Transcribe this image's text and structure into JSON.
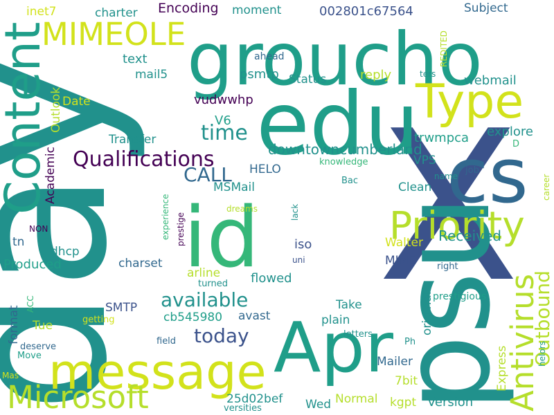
{
  "palette": {
    "background": "#ffffff",
    "dark_purple": "#440154",
    "indigo": "#3b528b",
    "blue_teal": "#31688e",
    "teal": "#21918c",
    "green_teal": "#1f9e89",
    "green": "#35b779",
    "light_green": "#6ece58",
    "lime": "#b5de2b",
    "yellow": "#d2e21b"
  },
  "words": [
    {
      "text": "X"
    },
    {
      "text": "day"
    },
    {
      "text": "groucho"
    },
    {
      "text": "edu"
    },
    {
      "text": "cs"
    },
    {
      "text": "psu"
    },
    {
      "text": "id"
    },
    {
      "text": "Apr"
    },
    {
      "text": "Content"
    },
    {
      "text": "message"
    },
    {
      "text": "Type"
    },
    {
      "text": "Priority"
    },
    {
      "text": "Microsoft"
    },
    {
      "text": "MIMEOLE"
    },
    {
      "text": "Antivirus"
    },
    {
      "text": "Qualifications"
    },
    {
      "text": "available"
    },
    {
      "text": "today"
    },
    {
      "text": "time"
    },
    {
      "text": "CALL"
    },
    {
      "text": "Outbound"
    },
    {
      "text": "Received"
    },
    {
      "text": "downtowncumberland"
    },
    {
      "text": "002801c67564"
    },
    {
      "text": "Encoding"
    },
    {
      "text": "charter"
    },
    {
      "text": "moment"
    },
    {
      "text": "Subject"
    },
    {
      "text": "inet7"
    },
    {
      "text": "text"
    },
    {
      "text": "mail5"
    },
    {
      "text": "psmtp"
    },
    {
      "text": "ahead"
    },
    {
      "text": "Status"
    },
    {
      "text": "reply"
    },
    {
      "text": "webmail"
    },
    {
      "text": "REDITED"
    },
    {
      "text": "ters"
    },
    {
      "text": "Outlook"
    },
    {
      "text": "Date"
    },
    {
      "text": "vudwwhp"
    },
    {
      "text": "V6"
    },
    {
      "text": "explore"
    },
    {
      "text": "Transfer"
    },
    {
      "text": "trwmpca"
    },
    {
      "text": "D"
    },
    {
      "text": "Academic"
    },
    {
      "text": "HELO"
    },
    {
      "text": "VPS"
    },
    {
      "text": "knowledge"
    },
    {
      "text": "job"
    },
    {
      "text": "career"
    },
    {
      "text": "name"
    },
    {
      "text": "MSMail"
    },
    {
      "text": "Bac"
    },
    {
      "text": "Clean"
    },
    {
      "text": "experience"
    },
    {
      "text": "prestige"
    },
    {
      "text": "dreams"
    },
    {
      "text": "lack"
    },
    {
      "text": "NON"
    },
    {
      "text": "tn"
    },
    {
      "text": "dhcp"
    },
    {
      "text": "iso"
    },
    {
      "text": "Walter"
    },
    {
      "text": "Produced"
    },
    {
      "text": "charset"
    },
    {
      "text": "uni"
    },
    {
      "text": "MIME"
    },
    {
      "text": "right"
    },
    {
      "text": "arline"
    },
    {
      "text": "flowed"
    },
    {
      "text": "turned"
    },
    {
      "text": "original"
    },
    {
      "text": "prestigious"
    },
    {
      "text": "format"
    },
    {
      "text": "ACC"
    },
    {
      "text": "SMTP"
    },
    {
      "text": "cb545980"
    },
    {
      "text": "avast"
    },
    {
      "text": "Take"
    },
    {
      "text": "plain"
    },
    {
      "text": "Tue"
    },
    {
      "text": "getting"
    },
    {
      "text": "letters"
    },
    {
      "text": "deserve"
    },
    {
      "text": "field"
    },
    {
      "text": "Ph"
    },
    {
      "text": "Express"
    },
    {
      "text": "Move"
    },
    {
      "text": "Mailer"
    },
    {
      "text": "helors"
    },
    {
      "text": "Mas"
    },
    {
      "text": "7bit"
    },
    {
      "text": "25d02bef"
    },
    {
      "text": "Wed"
    },
    {
      "text": "Normal"
    },
    {
      "text": "kgpt"
    },
    {
      "text": "Version"
    },
    {
      "text": "versities"
    }
  ]
}
